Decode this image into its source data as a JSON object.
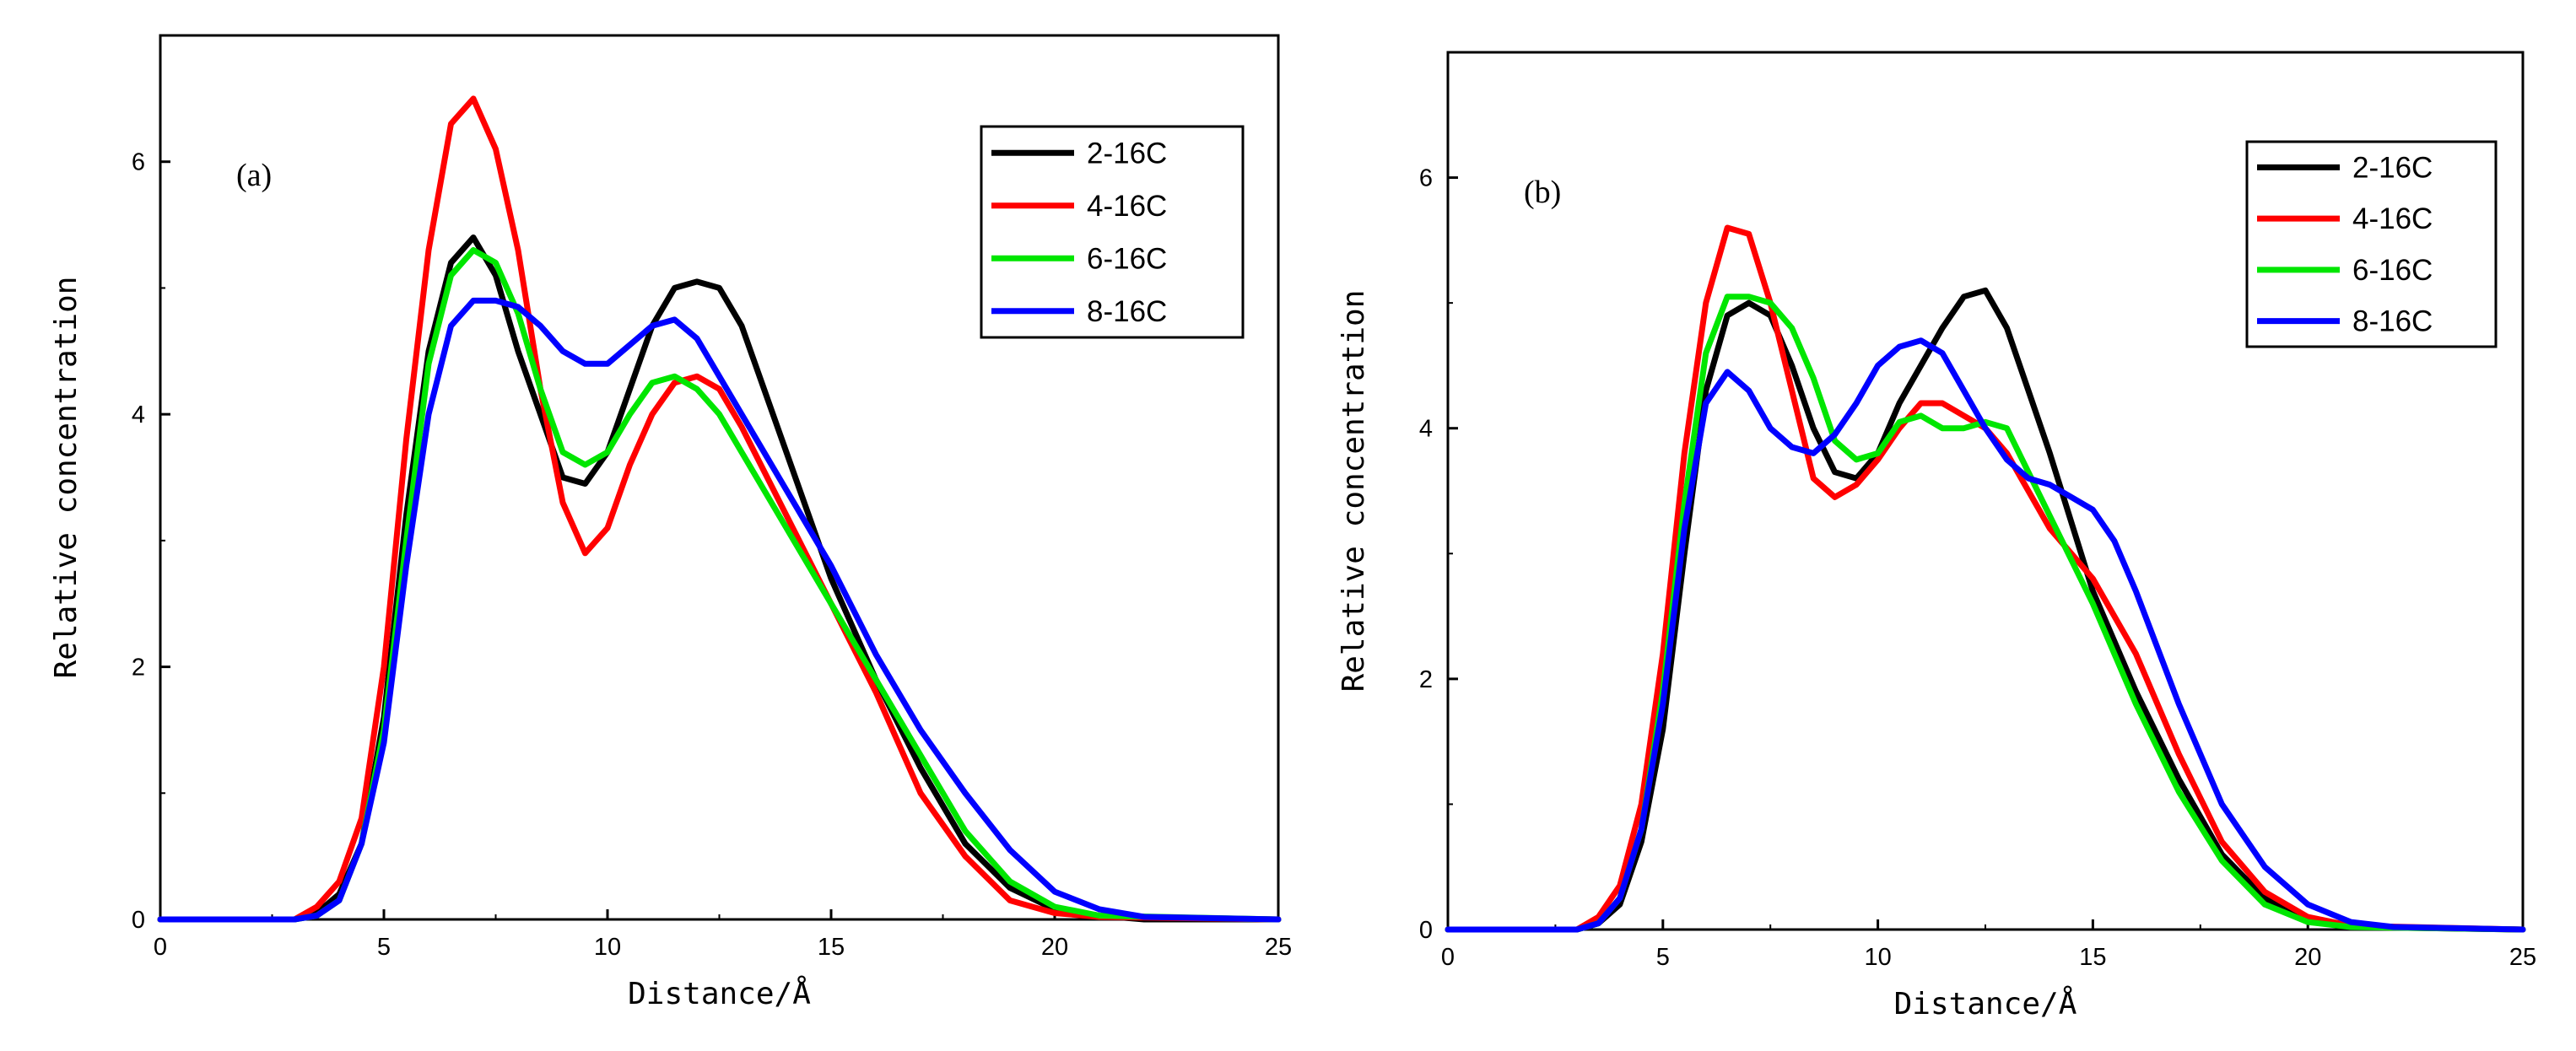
{
  "chart_data": [
    {
      "type": "line",
      "panel_label": "(a)",
      "xlabel": "Distance/Å",
      "ylabel": "Relative concentration",
      "xlim": [
        0,
        25
      ],
      "ylim": [
        0,
        7
      ],
      "xticks": [
        0,
        5,
        10,
        15,
        20,
        25
      ],
      "yticks": [
        0,
        2,
        4,
        6
      ],
      "legend_position": "top-right",
      "series": [
        {
          "name": "2-16C",
          "color": "#000000",
          "x": [
            0,
            3,
            3.5,
            4,
            4.5,
            5,
            5.5,
            6,
            6.5,
            7,
            7.5,
            8,
            8.5,
            9,
            9.5,
            10,
            10.5,
            11,
            11.5,
            12,
            12.5,
            13,
            13.5,
            14,
            15,
            16,
            17,
            18,
            19,
            20,
            21,
            22,
            25
          ],
          "y": [
            0,
            0,
            0.05,
            0.2,
            0.6,
            1.6,
            3.2,
            4.5,
            5.2,
            5.4,
            5.1,
            4.5,
            4.0,
            3.5,
            3.45,
            3.7,
            4.2,
            4.7,
            5.0,
            5.05,
            5.0,
            4.7,
            4.2,
            3.7,
            2.7,
            1.9,
            1.2,
            0.6,
            0.25,
            0.08,
            0.03,
            0,
            0
          ]
        },
        {
          "name": "4-16C",
          "color": "#ff0000",
          "x": [
            0,
            3,
            3.5,
            4,
            4.5,
            5,
            5.5,
            6,
            6.5,
            7,
            7.5,
            8,
            8.5,
            9,
            9.5,
            10,
            10.5,
            11,
            11.5,
            12,
            12.5,
            13,
            14,
            15,
            16,
            17,
            18,
            19,
            20,
            21,
            25
          ],
          "y": [
            0,
            0,
            0.1,
            0.3,
            0.8,
            2.0,
            3.8,
            5.3,
            6.3,
            6.5,
            6.1,
            5.3,
            4.2,
            3.3,
            2.9,
            3.1,
            3.6,
            4.0,
            4.25,
            4.3,
            4.2,
            3.9,
            3.2,
            2.5,
            1.8,
            1.0,
            0.5,
            0.15,
            0.05,
            0.02,
            0
          ]
        },
        {
          "name": "6-16C",
          "color": "#00e600",
          "x": [
            0,
            3,
            3.5,
            4,
            4.5,
            5,
            5.5,
            6,
            6.5,
            7,
            7.5,
            8,
            8.5,
            9,
            9.5,
            10,
            10.5,
            11,
            11.5,
            12,
            12.5,
            13,
            14,
            15,
            16,
            17,
            18,
            19,
            20,
            21,
            25
          ],
          "y": [
            0,
            0,
            0.03,
            0.15,
            0.6,
            1.5,
            3.0,
            4.4,
            5.1,
            5.3,
            5.2,
            4.8,
            4.2,
            3.7,
            3.6,
            3.7,
            4.0,
            4.25,
            4.3,
            4.2,
            4.0,
            3.7,
            3.1,
            2.5,
            1.9,
            1.3,
            0.7,
            0.3,
            0.1,
            0.03,
            0
          ]
        },
        {
          "name": "8-16C",
          "color": "#0000ff",
          "x": [
            0,
            3,
            3.5,
            4,
            4.5,
            5,
            5.5,
            6,
            6.5,
            7,
            7.5,
            8,
            8.5,
            9,
            9.5,
            10,
            10.5,
            11,
            11.5,
            12,
            12.5,
            13,
            14,
            15,
            16,
            17,
            18,
            19,
            20,
            21,
            22,
            25
          ],
          "y": [
            0,
            0,
            0.03,
            0.15,
            0.6,
            1.4,
            2.8,
            4.0,
            4.7,
            4.9,
            4.9,
            4.85,
            4.7,
            4.5,
            4.4,
            4.4,
            4.55,
            4.7,
            4.75,
            4.6,
            4.3,
            4.0,
            3.4,
            2.8,
            2.1,
            1.5,
            1.0,
            0.55,
            0.22,
            0.08,
            0.02,
            0
          ]
        }
      ]
    },
    {
      "type": "line",
      "panel_label": "(b)",
      "xlabel": "Distance/Å",
      "ylabel": "Relative concentration",
      "xlim": [
        0,
        25
      ],
      "ylim": [
        0,
        7
      ],
      "xticks": [
        0,
        5,
        10,
        15,
        20,
        25
      ],
      "yticks": [
        0,
        2,
        4,
        6
      ],
      "legend_position": "top-right",
      "series": [
        {
          "name": "2-16C",
          "color": "#000000",
          "x": [
            0,
            3,
            3.5,
            4,
            4.5,
            5,
            5.5,
            6,
            6.5,
            7,
            7.5,
            8,
            8.5,
            9,
            9.5,
            10,
            10.5,
            11,
            11.5,
            12,
            12.5,
            13,
            13.5,
            14,
            15,
            16,
            17,
            18,
            19,
            20,
            21,
            25
          ],
          "y": [
            0,
            0,
            0.05,
            0.2,
            0.7,
            1.6,
            3.0,
            4.3,
            4.9,
            5.0,
            4.9,
            4.5,
            4.0,
            3.65,
            3.6,
            3.8,
            4.2,
            4.5,
            4.8,
            5.05,
            5.1,
            4.8,
            4.3,
            3.8,
            2.7,
            1.9,
            1.2,
            0.6,
            0.25,
            0.08,
            0.02,
            0
          ]
        },
        {
          "name": "4-16C",
          "color": "#ff0000",
          "x": [
            0,
            3,
            3.5,
            4,
            4.5,
            5,
            5.5,
            6,
            6.5,
            7,
            7.5,
            8,
            8.5,
            9,
            9.5,
            10,
            10.5,
            11,
            11.5,
            12,
            12.5,
            13,
            14,
            15,
            16,
            17,
            18,
            19,
            20,
            21,
            25
          ],
          "y": [
            0,
            0,
            0.1,
            0.35,
            1.0,
            2.2,
            3.8,
            5.0,
            5.6,
            5.55,
            5.0,
            4.3,
            3.6,
            3.45,
            3.55,
            3.75,
            4.0,
            4.2,
            4.2,
            4.1,
            4.0,
            3.8,
            3.2,
            2.8,
            2.2,
            1.4,
            0.7,
            0.3,
            0.1,
            0.03,
            0
          ]
        },
        {
          "name": "6-16C",
          "color": "#00e600",
          "x": [
            0,
            3,
            3.5,
            4,
            4.5,
            5,
            5.5,
            6,
            6.5,
            7,
            7.5,
            8,
            8.5,
            9,
            9.5,
            10,
            10.5,
            11,
            11.5,
            12,
            12.5,
            13,
            14,
            15,
            16,
            17,
            18,
            19,
            20,
            21,
            25
          ],
          "y": [
            0,
            0,
            0.05,
            0.25,
            0.8,
            1.9,
            3.4,
            4.6,
            5.05,
            5.05,
            5.0,
            4.8,
            4.4,
            3.9,
            3.75,
            3.8,
            4.05,
            4.1,
            4.0,
            4.0,
            4.05,
            4.0,
            3.3,
            2.6,
            1.8,
            1.1,
            0.55,
            0.2,
            0.06,
            0.02,
            0
          ]
        },
        {
          "name": "8-16C",
          "color": "#0000ff",
          "x": [
            0,
            3,
            3.5,
            4,
            4.5,
            5,
            5.5,
            6,
            6.5,
            7,
            7.5,
            8,
            8.5,
            9,
            9.5,
            10,
            10.5,
            11,
            11.5,
            12,
            12.5,
            13,
            13.5,
            14,
            14.5,
            15,
            15.5,
            16,
            17,
            18,
            19,
            20,
            21,
            22,
            25
          ],
          "y": [
            0,
            0,
            0.05,
            0.25,
            0.8,
            1.8,
            3.2,
            4.2,
            4.45,
            4.3,
            4.0,
            3.85,
            3.8,
            3.95,
            4.2,
            4.5,
            4.65,
            4.7,
            4.6,
            4.3,
            4.0,
            3.75,
            3.6,
            3.55,
            3.45,
            3.35,
            3.1,
            2.7,
            1.8,
            1.0,
            0.5,
            0.2,
            0.06,
            0.02,
            0
          ]
        }
      ]
    }
  ]
}
